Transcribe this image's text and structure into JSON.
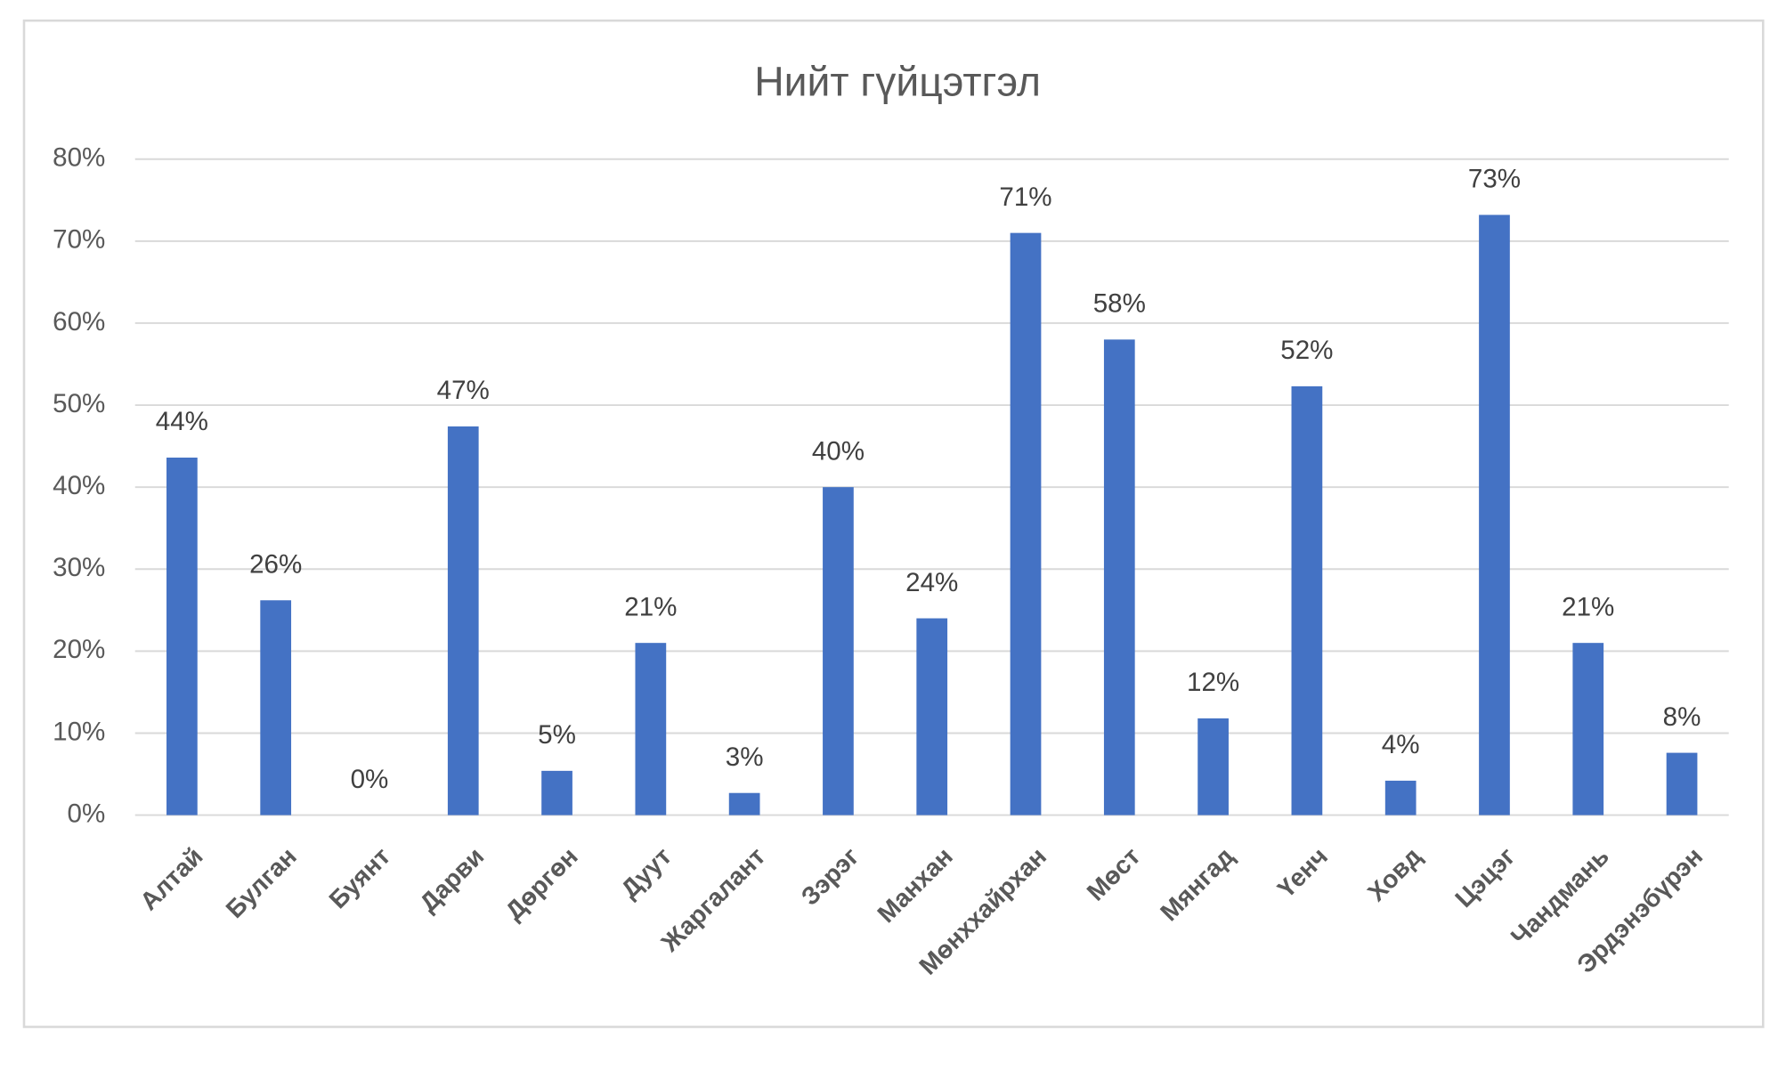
{
  "chart_data": {
    "type": "bar",
    "title": "Нийт гүйцэтгэл",
    "categories": [
      "Алтай",
      "Булган",
      "Буянт",
      "Дарви",
      "Дөргөн",
      "Дуут",
      "Жаргалант",
      "Зэрэг",
      "Манхан",
      "Мөнххайрхан",
      "Мөст",
      "Мянгад",
      "Үенч",
      "Ховд",
      "Цэцэг",
      "Чандмань",
      "Эрдэнэбүрэн"
    ],
    "values": [
      43.6,
      26.2,
      0,
      47.4,
      5.4,
      21,
      2.7,
      40,
      24,
      71,
      58,
      11.8,
      52.3,
      4.2,
      73.2,
      21,
      7.6
    ],
    "value_labels": [
      "44%",
      "26%",
      "0%",
      "47%",
      "5%",
      "21%",
      "3%",
      "40%",
      "24%",
      "71%",
      "58%",
      "12%",
      "52%",
      "4%",
      "73%",
      "21%",
      "8%"
    ],
    "color": "#4472c4",
    "ylim": [
      0,
      80
    ],
    "yticks": [
      {
        "value": 0,
        "label": "0%"
      },
      {
        "value": 10,
        "label": "10%"
      },
      {
        "value": 20,
        "label": "20%"
      },
      {
        "value": 30,
        "label": "30%"
      },
      {
        "value": 40,
        "label": "40%"
      },
      {
        "value": 50,
        "label": "50%"
      },
      {
        "value": 60,
        "label": "60%"
      },
      {
        "value": 70,
        "label": "70%"
      },
      {
        "value": 80,
        "label": "80%"
      }
    ],
    "grid": true
  }
}
